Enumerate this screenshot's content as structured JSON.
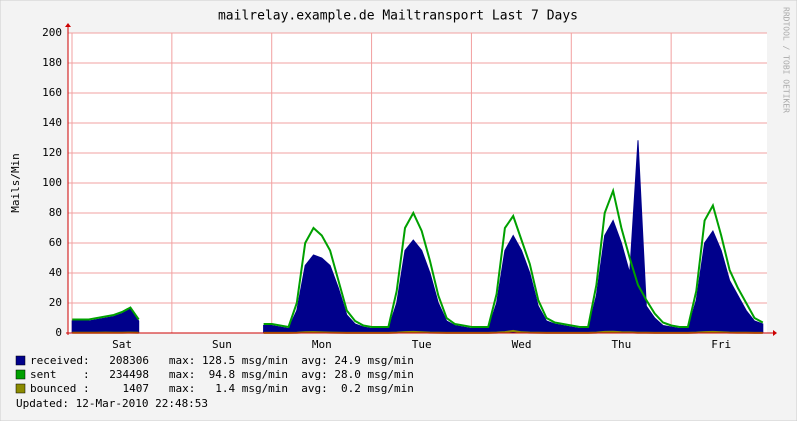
{
  "chart_data": {
    "type": "area",
    "title": "mailrelay.example.de Mailtransport Last 7 Days",
    "y_label": "Mails/Min",
    "side_note": "RRDTOOL / TOBI OETIKER",
    "updated": "Updated: 12-Mar-2010 22:48:53",
    "categories": [
      null,
      null,
      null,
      null,
      null,
      null,
      "Sat",
      null,
      null,
      null,
      null,
      null,
      null,
      null,
      null,
      null,
      null,
      null,
      "Sun",
      null,
      null,
      null,
      null,
      null,
      null,
      null,
      null,
      null,
      null,
      null,
      "Mon",
      null,
      null,
      null,
      null,
      null,
      null,
      null,
      null,
      null,
      null,
      null,
      "Tue",
      null,
      null,
      null,
      null,
      null,
      null,
      null,
      null,
      null,
      null,
      null,
      "Wed",
      null,
      null,
      null,
      null,
      null,
      null,
      null,
      null,
      null,
      null,
      null,
      "Thu",
      null,
      null,
      null,
      null,
      null,
      null,
      null,
      null,
      null,
      null,
      null,
      "Fri",
      null,
      null,
      null,
      null,
      null
    ],
    "ylim": [
      0,
      200
    ],
    "yticks": [
      0,
      20,
      40,
      60,
      80,
      100,
      120,
      140,
      160,
      180,
      200
    ],
    "grid": true,
    "series": [
      {
        "name": "received:",
        "color": "#00008b",
        "style": "area",
        "stats": "  208306   max: 128.5 msg/min  avg: 24.9 msg/min",
        "values": [
          8,
          8,
          8,
          9,
          10,
          11,
          13,
          16,
          8,
          null,
          null,
          null,
          null,
          null,
          null,
          null,
          null,
          null,
          null,
          null,
          null,
          null,
          null,
          5,
          5,
          4,
          3,
          15,
          45,
          52,
          50,
          45,
          30,
          12,
          6,
          4,
          3,
          3,
          3,
          20,
          55,
          62,
          55,
          40,
          20,
          8,
          5,
          4,
          3,
          3,
          3,
          20,
          55,
          65,
          55,
          40,
          18,
          8,
          6,
          5,
          4,
          3,
          3,
          25,
          65,
          75,
          60,
          40,
          128.5,
          18,
          10,
          5,
          4,
          3,
          3,
          22,
          60,
          68,
          55,
          35,
          25,
          15,
          8,
          6
        ]
      },
      {
        "name": "sent    :",
        "color": "#00a000",
        "style": "line",
        "stats": "  234498   max:  94.8 msg/min  avg: 28.0 msg/min",
        "values": [
          9,
          9,
          9,
          10,
          11,
          12,
          14,
          17,
          9,
          null,
          null,
          null,
          null,
          null,
          null,
          null,
          null,
          null,
          null,
          null,
          null,
          null,
          null,
          6,
          6,
          5,
          4,
          20,
          60,
          70,
          65,
          55,
          35,
          15,
          8,
          5,
          4,
          4,
          4,
          28,
          70,
          80,
          68,
          48,
          25,
          10,
          6,
          5,
          4,
          4,
          4,
          26,
          70,
          78,
          62,
          46,
          22,
          10,
          7,
          6,
          5,
          4,
          4,
          32,
          80,
          94.8,
          70,
          50,
          32,
          22,
          13,
          7,
          5,
          4,
          4,
          28,
          75,
          85,
          65,
          42,
          30,
          20,
          10,
          7
        ]
      },
      {
        "name": "bounced :",
        "color": "#8b8b00",
        "style": "line",
        "stats": "    1407   max:   1.4 msg/min  avg:  0.2 msg/min",
        "values": [
          0.2,
          0.2,
          0.2,
          0.2,
          0.3,
          0.2,
          0.2,
          0.3,
          0.2,
          null,
          null,
          null,
          null,
          null,
          null,
          null,
          null,
          null,
          null,
          null,
          null,
          null,
          null,
          0.1,
          0.1,
          0.1,
          0.1,
          0.2,
          0.5,
          0.6,
          0.4,
          0.3,
          0.2,
          0.1,
          0.1,
          0.1,
          0.1,
          0.1,
          0.1,
          0.3,
          0.6,
          0.7,
          0.5,
          0.3,
          0.2,
          0.1,
          0.1,
          0.1,
          0.1,
          0.1,
          0.1,
          0.3,
          0.6,
          1.4,
          0.5,
          0.3,
          0.2,
          0.1,
          0.1,
          0.1,
          0.1,
          0.1,
          0.1,
          0.3,
          0.7,
          0.8,
          0.5,
          0.4,
          0.2,
          0.2,
          0.1,
          0.1,
          0.1,
          0.1,
          0.1,
          0.3,
          0.6,
          0.7,
          0.5,
          0.3,
          0.2,
          0.2,
          0.1,
          0.1
        ]
      }
    ]
  }
}
